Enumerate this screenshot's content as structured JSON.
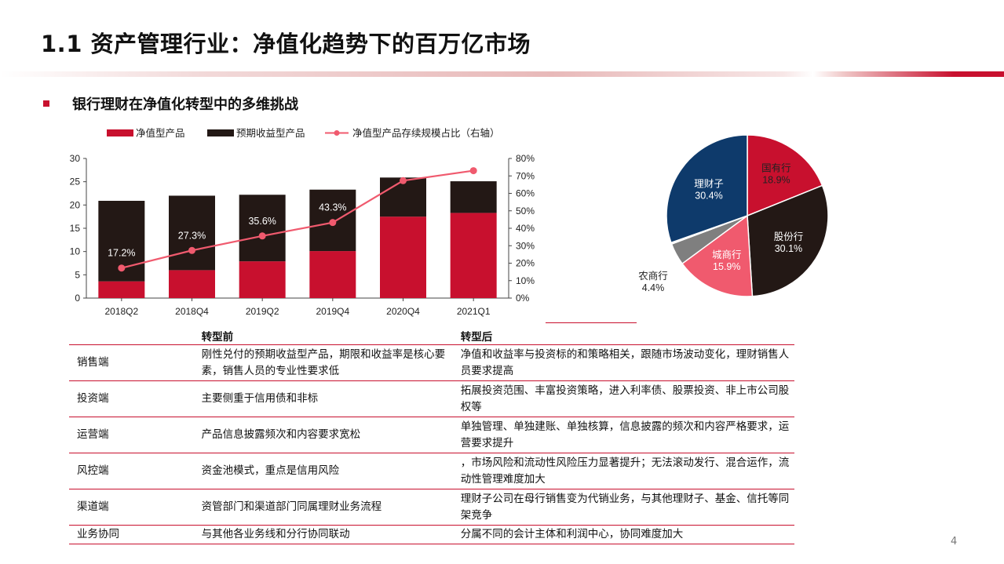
{
  "header": {
    "title": "1.1 资产管理行业：净值化趋势下的百万亿市场",
    "subtitle": "银行理财在净值化转型中的多维挑战"
  },
  "colors": {
    "accent": "#c8102e",
    "dark": "#231815",
    "line": "#f05a6e",
    "pie_blue": "#0e3a6b",
    "pie_gray": "#7f7f7f",
    "pie_pink": "#f05a6e"
  },
  "chart_data": [
    {
      "type": "bar",
      "legend": [
        "净值型产品",
        "预期收益型产品",
        "净值型产品存续规模占比（右轴）"
      ],
      "categories": [
        "2018Q2",
        "2018Q4",
        "2019Q2",
        "2019Q4",
        "2020Q4",
        "2021Q1"
      ],
      "series": [
        {
          "name": "净值型产品",
          "values": [
            3.6,
            6.0,
            7.9,
            10.1,
            17.5,
            18.3
          ]
        },
        {
          "name": "预期收益型产品",
          "values": [
            17.3,
            16.0,
            14.3,
            13.2,
            8.4,
            6.8
          ]
        },
        {
          "name": "净值型产品存续规模占比（右轴）",
          "type": "line",
          "axis": "right",
          "values": [
            17.2,
            27.3,
            35.6,
            43.3,
            67.3,
            73.0
          ]
        }
      ],
      "data_labels": [
        "17.2%",
        "27.3%",
        "35.6%",
        "43.3%",
        "67.3%",
        "73.0%"
      ],
      "ylim": [
        0,
        30
      ],
      "y_ticks": [
        "0",
        "5",
        "10",
        "15",
        "20",
        "25",
        "30"
      ],
      "y2lim": [
        0,
        80
      ],
      "y2_ticks": [
        "0%",
        "10%",
        "20%",
        "30%",
        "40%",
        "50%",
        "60%",
        "70%",
        "80%"
      ]
    },
    {
      "type": "pie",
      "slices": [
        {
          "name": "国有行",
          "value": 18.9,
          "label": "18.9%",
          "color": "#c8102e"
        },
        {
          "name": "股份行",
          "value": 30.1,
          "label": "30.1%",
          "color": "#231815"
        },
        {
          "name": "城商行",
          "value": 15.9,
          "label": "15.9%",
          "color": "#f05a6e"
        },
        {
          "name": "农商行",
          "value": 4.4,
          "label": "4.4%",
          "color": "#7f7f7f"
        },
        {
          "name": "",
          "value": 0.3,
          "label": "",
          "color": "#e0e0e0"
        },
        {
          "name": "理财子",
          "value": 30.4,
          "label": "30.4%",
          "color": "#0e3a6b"
        }
      ]
    }
  ],
  "table": {
    "headers": [
      "",
      "转型前",
      "转型后"
    ],
    "rows": [
      [
        "销售端",
        "刚性兑付的预期收益型产品，期限和收益率是核心要素，销售人员的专业性要求低",
        "净值和收益率与投资标的和策略相关，跟随市场波动变化，理财销售人员要求提高"
      ],
      [
        "投资端",
        "主要侧重于信用债和非标",
        "拓展投资范围、丰富投资策略，进入利率债、股票投资、非上市公司股权等"
      ],
      [
        "运营端",
        "产品信息披露频次和内容要求宽松",
        "单独管理、单独建账、单独核算，信息披露的频次和内容严格要求，运营要求提升"
      ],
      [
        "风控端",
        "资金池模式，重点是信用风险",
        "，市场风险和流动性风险压力显著提升；无法滚动发行、混合运作，流动性管理难度加大"
      ],
      [
        "渠道端",
        "资管部门和渠道部门同属理财业务流程",
        "理财子公司在母行销售变为代销业务，与其他理财子、基金、信托等同架竞争"
      ],
      [
        "业务协同",
        "与其他各业务线和分行协同联动",
        "分属不同的会计主体和利润中心，协同难度加大"
      ]
    ]
  },
  "page_number": "4"
}
